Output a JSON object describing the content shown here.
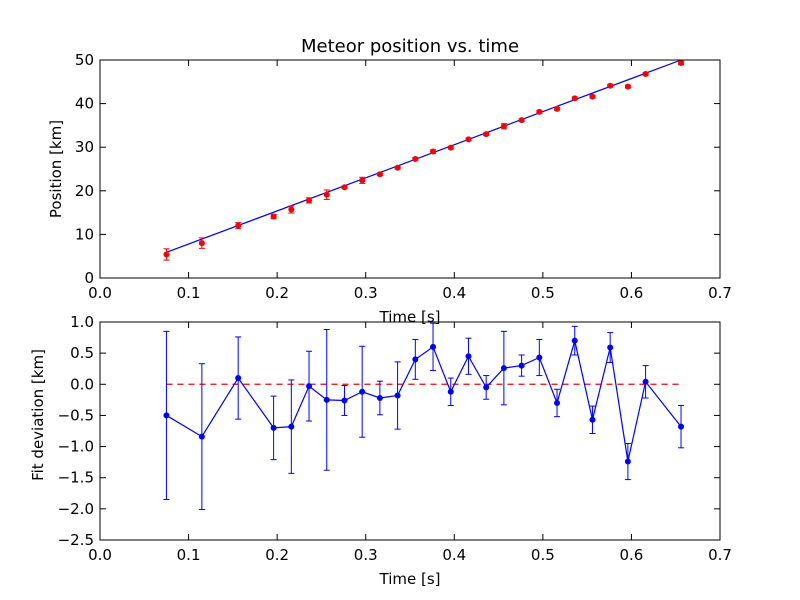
{
  "chart_data": [
    {
      "type": "scatter",
      "title": "Meteor position vs. time",
      "xlabel": "Time [s]",
      "ylabel": "Position [km]",
      "xlim": [
        0.0,
        0.7
      ],
      "ylim": [
        0,
        50
      ],
      "x_ticks": [
        "0.0",
        "0.1",
        "0.2",
        "0.3",
        "0.4",
        "0.5",
        "0.6",
        "0.7"
      ],
      "y_ticks": [
        "0",
        "10",
        "20",
        "30",
        "40",
        "50"
      ],
      "grid": false,
      "colors": {
        "data": "#ff0000",
        "fit": "#0000ff"
      },
      "points": [
        {
          "x": 0.075,
          "y": 5.4,
          "err": 1.3
        },
        {
          "x": 0.115,
          "y": 8.0,
          "err": 1.2
        },
        {
          "x": 0.156,
          "y": 12.0,
          "err": 0.7
        },
        {
          "x": 0.196,
          "y": 14.1,
          "err": 0.5
        },
        {
          "x": 0.216,
          "y": 15.7,
          "err": 0.8
        },
        {
          "x": 0.236,
          "y": 17.8,
          "err": 0.6
        },
        {
          "x": 0.256,
          "y": 19.1,
          "err": 1.1
        },
        {
          "x": 0.276,
          "y": 20.8,
          "err": 0.3
        },
        {
          "x": 0.296,
          "y": 22.4,
          "err": 0.7
        },
        {
          "x": 0.316,
          "y": 23.8,
          "err": 0.3
        },
        {
          "x": 0.336,
          "y": 25.3,
          "err": 0.3
        },
        {
          "x": 0.356,
          "y": 27.3,
          "err": 0.3
        },
        {
          "x": 0.376,
          "y": 29.0,
          "err": 0.4
        },
        {
          "x": 0.396,
          "y": 29.9,
          "err": 0.3
        },
        {
          "x": 0.416,
          "y": 31.8,
          "err": 0.3
        },
        {
          "x": 0.436,
          "y": 33.0,
          "err": 0.3
        },
        {
          "x": 0.456,
          "y": 34.8,
          "err": 0.6
        },
        {
          "x": 0.476,
          "y": 36.2,
          "err": 0.3
        },
        {
          "x": 0.496,
          "y": 38.1,
          "err": 0.3
        },
        {
          "x": 0.516,
          "y": 38.8,
          "err": 0.3
        },
        {
          "x": 0.536,
          "y": 41.2,
          "err": 0.3
        },
        {
          "x": 0.556,
          "y": 41.6,
          "err": 0.3
        },
        {
          "x": 0.576,
          "y": 44.1,
          "err": 0.3
        },
        {
          "x": 0.596,
          "y": 43.9,
          "err": 0.3
        },
        {
          "x": 0.616,
          "y": 46.8,
          "err": 0.3
        },
        {
          "x": 0.656,
          "y": 49.3,
          "err": 0.4
        }
      ],
      "fit_line": [
        {
          "x": 0.075,
          "y": 5.9
        },
        {
          "x": 0.656,
          "y": 50.0
        }
      ]
    },
    {
      "type": "line",
      "title": "",
      "xlabel": "Time [s]",
      "ylabel": "Fit deviation [km]",
      "xlim": [
        0.0,
        0.7
      ],
      "ylim": [
        -2.5,
        1.0
      ],
      "x_ticks": [
        "0.0",
        "0.1",
        "0.2",
        "0.3",
        "0.4",
        "0.5",
        "0.6",
        "0.7"
      ],
      "y_ticks": [
        "1.0",
        "0.5",
        "0.0",
        "−0.5",
        "−1.0",
        "−1.5",
        "−2.0",
        "−2.5"
      ],
      "grid": false,
      "colors": {
        "data": "#0000ff",
        "zero_line": "#ff0000"
      },
      "zero_line": {
        "y": 0.0,
        "x_from": 0.075,
        "x_to": 0.656,
        "style": "dashed"
      },
      "points": [
        {
          "x": 0.075,
          "y": -0.5,
          "err": 1.35
        },
        {
          "x": 0.115,
          "y": -0.84,
          "err": 1.17
        },
        {
          "x": 0.156,
          "y": 0.1,
          "err": 0.66
        },
        {
          "x": 0.196,
          "y": -0.7,
          "err": 0.51
        },
        {
          "x": 0.216,
          "y": -0.68,
          "err": 0.75
        },
        {
          "x": 0.236,
          "y": -0.03,
          "err": 0.56
        },
        {
          "x": 0.256,
          "y": -0.25,
          "err": 1.13
        },
        {
          "x": 0.276,
          "y": -0.26,
          "err": 0.24
        },
        {
          "x": 0.296,
          "y": -0.12,
          "err": 0.73
        },
        {
          "x": 0.316,
          "y": -0.22,
          "err": 0.27
        },
        {
          "x": 0.336,
          "y": -0.18,
          "err": 0.54
        },
        {
          "x": 0.356,
          "y": 0.4,
          "err": 0.32
        },
        {
          "x": 0.376,
          "y": 0.6,
          "err": 0.38
        },
        {
          "x": 0.396,
          "y": -0.12,
          "err": 0.22
        },
        {
          "x": 0.416,
          "y": 0.45,
          "err": 0.29
        },
        {
          "x": 0.436,
          "y": -0.05,
          "err": 0.19
        },
        {
          "x": 0.456,
          "y": 0.26,
          "err": 0.59
        },
        {
          "x": 0.476,
          "y": 0.3,
          "err": 0.17
        },
        {
          "x": 0.496,
          "y": 0.43,
          "err": 0.29
        },
        {
          "x": 0.516,
          "y": -0.3,
          "err": 0.22
        },
        {
          "x": 0.536,
          "y": 0.7,
          "err": 0.23
        },
        {
          "x": 0.556,
          "y": -0.57,
          "err": 0.22
        },
        {
          "x": 0.576,
          "y": 0.59,
          "err": 0.24
        },
        {
          "x": 0.596,
          "y": -1.24,
          "err": 0.29
        },
        {
          "x": 0.616,
          "y": 0.04,
          "err": 0.26
        },
        {
          "x": 0.656,
          "y": -0.68,
          "err": 0.34
        }
      ]
    }
  ]
}
